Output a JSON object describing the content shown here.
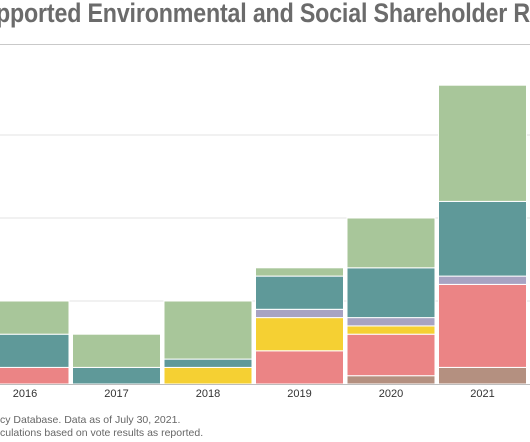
{
  "title": "pported Environmental and Social Shareholder Re",
  "source_line1": "cy Database. Data as of July 30, 2021.",
  "source_line2": "culations based on vote results as reported.",
  "colors": {
    "green": "#a8c69a",
    "teal": "#5f9999",
    "lavender": "#a7a3c2",
    "yellow": "#f5d033",
    "pink": "#eb8485",
    "brown": "#b49080",
    "grid": "#e3e3e3",
    "axis": "#bdbdbd"
  },
  "chart_data": {
    "type": "bar",
    "stacked": true,
    "categories": [
      "2016",
      "2017",
      "2018",
      "2019",
      "2020",
      "2021"
    ],
    "series": [
      {
        "key": "brown",
        "color": "#b49080",
        "values": [
          0,
          0,
          0,
          0,
          1,
          2
        ]
      },
      {
        "key": "pink",
        "color": "#eb8485",
        "values": [
          2,
          0,
          0,
          4,
          5,
          10
        ]
      },
      {
        "key": "yellow",
        "color": "#f5d033",
        "values": [
          0,
          0,
          2,
          4,
          1,
          0
        ]
      },
      {
        "key": "lavender",
        "color": "#a7a3c2",
        "values": [
          0,
          0,
          0,
          1,
          1,
          1
        ]
      },
      {
        "key": "teal",
        "color": "#5f9999",
        "values": [
          4,
          2,
          1,
          4,
          6,
          9
        ]
      },
      {
        "key": "green",
        "color": "#a8c69a",
        "values": [
          4,
          4,
          7,
          1,
          6,
          14
        ]
      }
    ],
    "ylim": [
      0,
      36
    ],
    "gridlines": [
      10,
      20,
      30
    ],
    "grid": true,
    "legend": "none"
  }
}
